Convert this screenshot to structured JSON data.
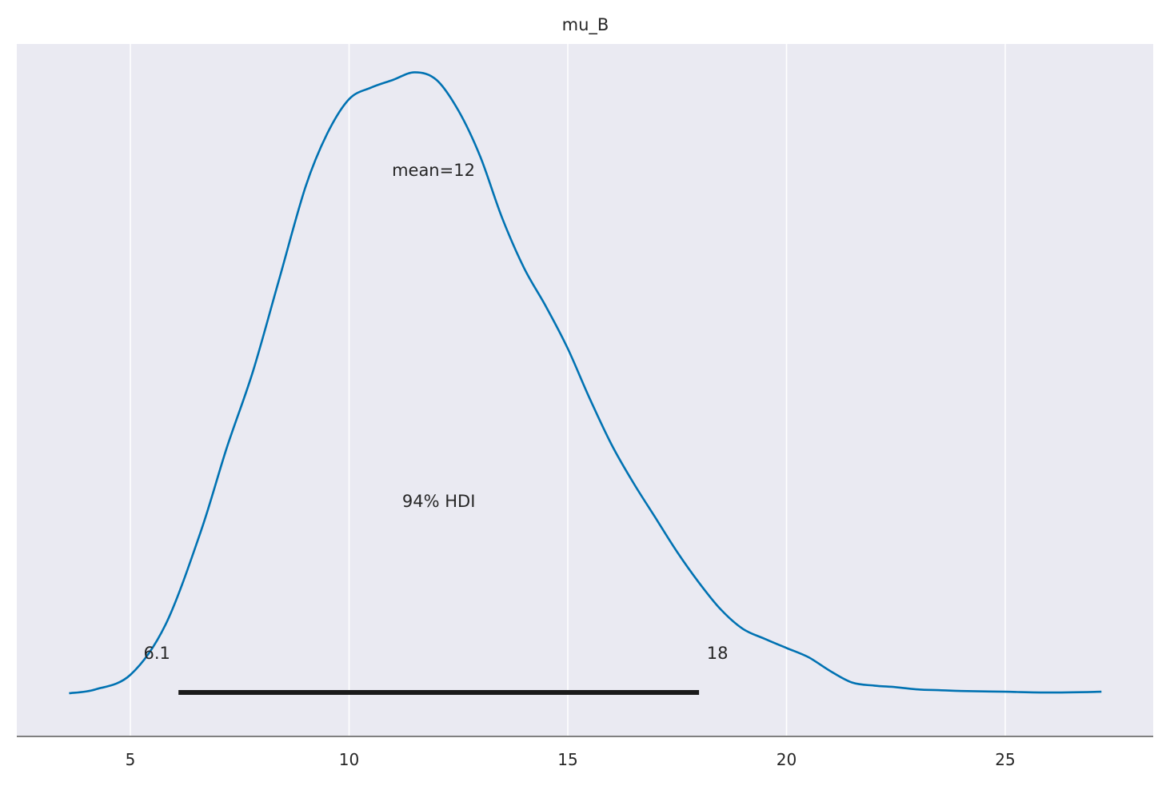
{
  "chart_data": {
    "type": "area",
    "title": "mu_B",
    "xlabel": "",
    "ylabel": "",
    "xlim": [
      2.6,
      28.5
    ],
    "xticks": [
      5,
      10,
      15,
      20,
      25
    ],
    "grid": true,
    "density": {
      "x": [
        3.6,
        4.2,
        5.0,
        5.8,
        6.6,
        7.2,
        7.8,
        8.4,
        9.0,
        9.5,
        10.0,
        10.5,
        11.0,
        11.5,
        12.0,
        12.5,
        13.0,
        13.5,
        14.0,
        14.5,
        15.0,
        15.5,
        16.0,
        16.5,
        17.0,
        17.5,
        18.0,
        18.5,
        19.0,
        19.5,
        20.0,
        20.5,
        21.0,
        21.5,
        22.0,
        22.5,
        23.0,
        23.5,
        24.0,
        25.0,
        26.0,
        27.2
      ],
      "y": [
        0.001,
        0.006,
        0.025,
        0.09,
        0.21,
        0.32,
        0.42,
        0.54,
        0.66,
        0.73,
        0.775,
        0.79,
        0.8,
        0.81,
        0.8,
        0.76,
        0.7,
        0.62,
        0.555,
        0.505,
        0.45,
        0.385,
        0.325,
        0.275,
        0.23,
        0.185,
        0.145,
        0.11,
        0.085,
        0.072,
        0.06,
        0.048,
        0.03,
        0.015,
        0.011,
        0.009,
        0.006,
        0.005,
        0.004,
        0.003,
        0.002,
        0.003
      ]
    },
    "mean_label": "mean=12",
    "hdi": {
      "label": "94% HDI",
      "low": 6.1,
      "high": 18,
      "low_label": "6.1",
      "high_label": "18"
    },
    "colors": {
      "line": "#0072b2",
      "background": "#eaeaf2",
      "grid": "#ffffff",
      "hdi_bar": "#1a1a1a",
      "axis": "#808080"
    }
  }
}
